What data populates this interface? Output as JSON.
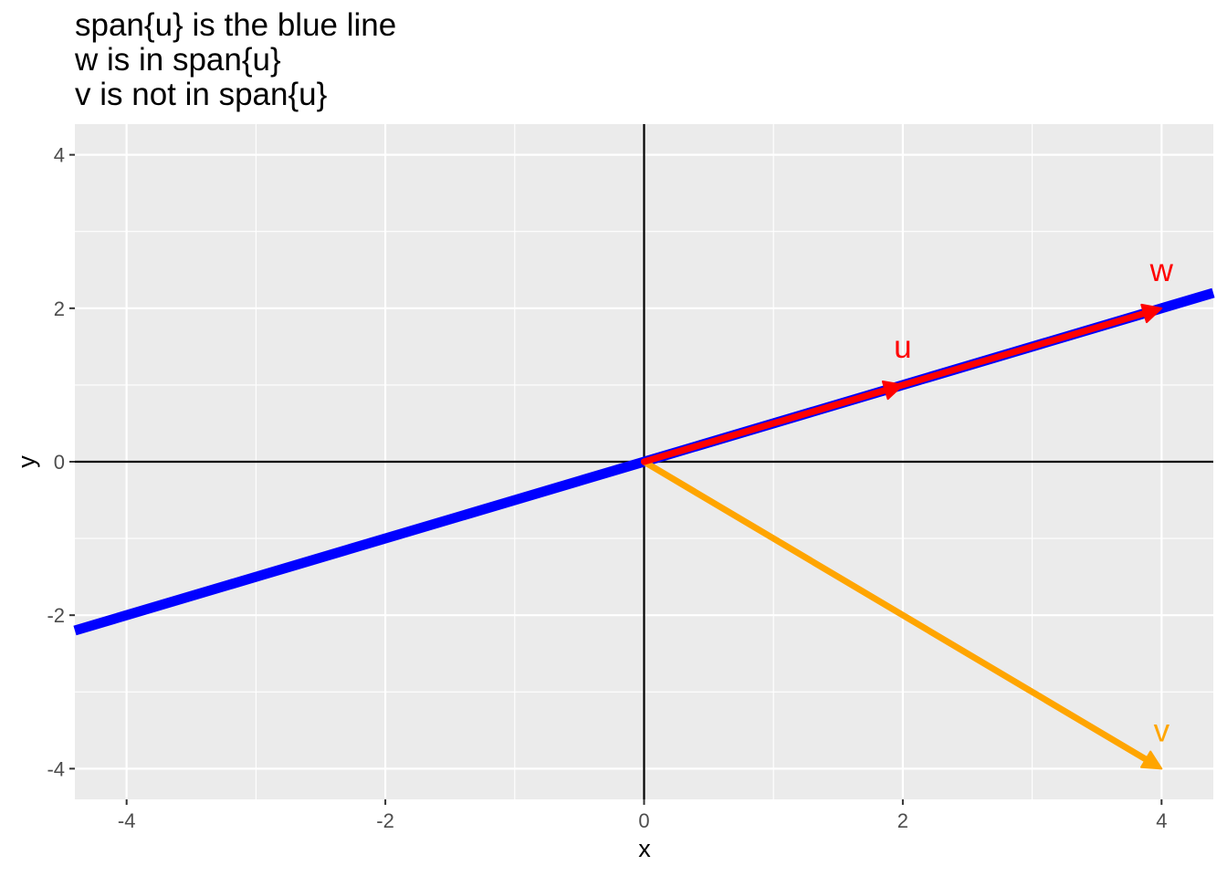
{
  "chart_data": {
    "type": "line",
    "title_lines": [
      "span{u} is the blue line",
      "w is in span{u}",
      "v is not in span{u}"
    ],
    "xlabel": "x",
    "ylabel": "y",
    "xlim": [
      -4.4,
      4.4
    ],
    "ylim": [
      -4.4,
      4.4
    ],
    "x_ticks": [
      -4,
      -2,
      0,
      2,
      4
    ],
    "y_ticks": [
      -4,
      -2,
      0,
      2,
      4
    ],
    "grid": true,
    "span_line": {
      "slope": 0.5,
      "color": "#0000ff"
    },
    "vectors": [
      {
        "label": "u",
        "x": 2,
        "y": 1,
        "color": "#ff0000"
      },
      {
        "label": "w",
        "x": 4,
        "y": 2,
        "color": "#ff0000"
      },
      {
        "label": "v",
        "x": 4,
        "y": -4,
        "color": "#ffa500"
      }
    ]
  }
}
